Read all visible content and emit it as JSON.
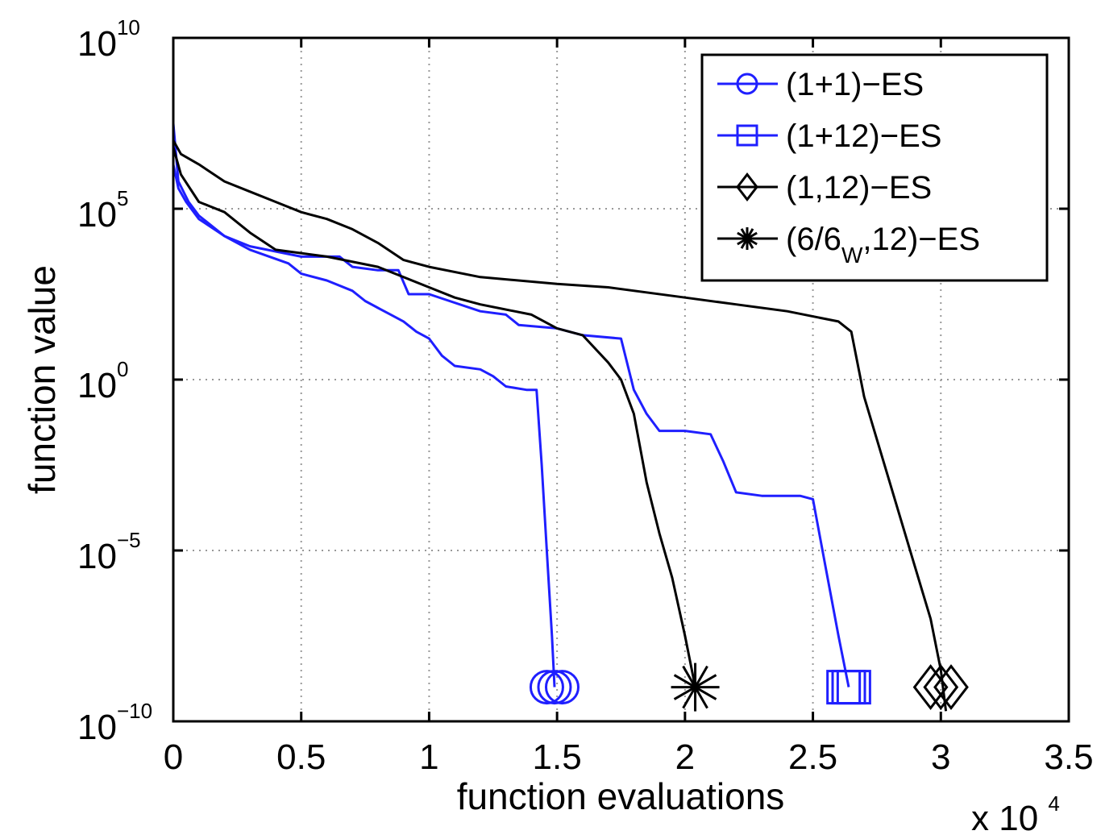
{
  "chart_data": {
    "type": "line",
    "xlabel": "function evaluations",
    "ylabel": "function value",
    "x_multiplier_label": {
      "base": "x 10",
      "exponent": "4"
    },
    "x_scale": 10000,
    "xlim": [
      0,
      3.5
    ],
    "ylim_log10": [
      -10,
      10
    ],
    "yscale": "log",
    "grid": true,
    "legend_position": "top-right",
    "x_ticks": [
      {
        "value": 0,
        "label": "0"
      },
      {
        "value": 0.5,
        "label": "0.5"
      },
      {
        "value": 1,
        "label": "1"
      },
      {
        "value": 1.5,
        "label": "1.5"
      },
      {
        "value": 2,
        "label": "2"
      },
      {
        "value": 2.5,
        "label": "2.5"
      },
      {
        "value": 3,
        "label": "3"
      },
      {
        "value": 3.5,
        "label": "3.5"
      }
    ],
    "y_ticks": [
      {
        "log10": 10,
        "base": "10",
        "exponent": "10"
      },
      {
        "log10": 5,
        "base": "10",
        "exponent": "5"
      },
      {
        "log10": 0,
        "base": "10",
        "exponent": "0"
      },
      {
        "log10": -5,
        "base": "10",
        "exponent": "−5"
      },
      {
        "log10": -10,
        "base": "10",
        "exponent": "−10"
      }
    ],
    "series": [
      {
        "name": "(1+1)−ES",
        "color": "#1f1fff",
        "marker": "circle",
        "points_x_x1e4_log10y": [
          [
            0,
            7.5
          ],
          [
            0.02,
            5.8
          ],
          [
            0.06,
            5.2
          ],
          [
            0.1,
            4.8
          ],
          [
            0.2,
            4.2
          ],
          [
            0.3,
            3.8
          ],
          [
            0.45,
            3.4
          ],
          [
            0.5,
            3.1
          ],
          [
            0.6,
            2.9
          ],
          [
            0.7,
            2.6
          ],
          [
            0.75,
            2.3
          ],
          [
            0.8,
            2.1
          ],
          [
            0.85,
            1.9
          ],
          [
            0.9,
            1.7
          ],
          [
            0.95,
            1.4
          ],
          [
            1.0,
            1.2
          ],
          [
            1.05,
            0.7
          ],
          [
            1.1,
            0.4
          ],
          [
            1.2,
            0.3
          ],
          [
            1.25,
            0.1
          ],
          [
            1.3,
            -0.2
          ],
          [
            1.38,
            -0.3
          ],
          [
            1.42,
            -0.3
          ],
          [
            1.44,
            -2.5
          ],
          [
            1.46,
            -5.0
          ],
          [
            1.48,
            -7.5
          ],
          [
            1.49,
            -9.0
          ]
        ],
        "end_markers_x": [
          1.46,
          1.49,
          1.52
        ],
        "end_markers_log10y": -9.0
      },
      {
        "name": "(1+12)−ES",
        "color": "#1f1fff",
        "marker": "square",
        "points_x_x1e4_log10y": [
          [
            0,
            6.3
          ],
          [
            0.02,
            5.6
          ],
          [
            0.05,
            5.2
          ],
          [
            0.1,
            4.7
          ],
          [
            0.2,
            4.2
          ],
          [
            0.3,
            3.9
          ],
          [
            0.5,
            3.6
          ],
          [
            0.65,
            3.6
          ],
          [
            0.7,
            3.3
          ],
          [
            0.8,
            3.2
          ],
          [
            0.88,
            3.2
          ],
          [
            0.92,
            2.5
          ],
          [
            1.0,
            2.5
          ],
          [
            1.2,
            2.0
          ],
          [
            1.3,
            1.9
          ],
          [
            1.35,
            1.6
          ],
          [
            1.5,
            1.5
          ],
          [
            1.6,
            1.3
          ],
          [
            1.75,
            1.2
          ],
          [
            1.8,
            -0.3
          ],
          [
            1.85,
            -1.0
          ],
          [
            1.9,
            -1.5
          ],
          [
            2.0,
            -1.5
          ],
          [
            2.1,
            -1.6
          ],
          [
            2.15,
            -2.4
          ],
          [
            2.2,
            -3.3
          ],
          [
            2.3,
            -3.4
          ],
          [
            2.45,
            -3.4
          ],
          [
            2.5,
            -3.5
          ],
          [
            2.55,
            -5.5
          ],
          [
            2.6,
            -7.5
          ],
          [
            2.64,
            -9.0
          ]
        ],
        "end_markers_x": [
          2.62,
          2.64,
          2.66
        ],
        "end_markers_log10y": -9.0
      },
      {
        "name": "(1,12)−ES",
        "color": "#000000",
        "marker": "diamond",
        "points_x_x1e4_log10y": [
          [
            0,
            7.0
          ],
          [
            0.03,
            6.6
          ],
          [
            0.1,
            6.3
          ],
          [
            0.2,
            5.8
          ],
          [
            0.3,
            5.5
          ],
          [
            0.4,
            5.2
          ],
          [
            0.5,
            4.9
          ],
          [
            0.6,
            4.7
          ],
          [
            0.7,
            4.4
          ],
          [
            0.8,
            4.0
          ],
          [
            0.9,
            3.5
          ],
          [
            1.0,
            3.3
          ],
          [
            1.2,
            3.0
          ],
          [
            1.5,
            2.8
          ],
          [
            1.7,
            2.7
          ],
          [
            2.0,
            2.4
          ],
          [
            2.2,
            2.2
          ],
          [
            2.4,
            2.0
          ],
          [
            2.6,
            1.7
          ],
          [
            2.65,
            1.4
          ],
          [
            2.7,
            -0.5
          ],
          [
            2.8,
            -3.0
          ],
          [
            2.9,
            -5.5
          ],
          [
            2.96,
            -7.0
          ],
          [
            3.0,
            -8.5
          ],
          [
            3.02,
            -9.7
          ]
        ],
        "end_markers_x": [
          2.96,
          3.0,
          3.04
        ],
        "end_markers_log10y": -9.0
      },
      {
        "name": "(6/6W,12)−ES",
        "name_parts": {
          "pre": "(6/6",
          "sub": "W",
          "post": ",12)−ES"
        },
        "color": "#000000",
        "marker": "asterisk",
        "points_x_x1e4_log10y": [
          [
            0,
            6.8
          ],
          [
            0.03,
            6.0
          ],
          [
            0.1,
            5.2
          ],
          [
            0.2,
            4.9
          ],
          [
            0.3,
            4.3
          ],
          [
            0.4,
            3.8
          ],
          [
            0.5,
            3.7
          ],
          [
            0.6,
            3.6
          ],
          [
            0.8,
            3.3
          ],
          [
            1.0,
            2.7
          ],
          [
            1.1,
            2.4
          ],
          [
            1.2,
            2.2
          ],
          [
            1.4,
            1.9
          ],
          [
            1.5,
            1.5
          ],
          [
            1.6,
            1.3
          ],
          [
            1.7,
            0.5
          ],
          [
            1.75,
            0.0
          ],
          [
            1.8,
            -1.0
          ],
          [
            1.85,
            -3.0
          ],
          [
            1.9,
            -4.5
          ],
          [
            1.95,
            -5.8
          ],
          [
            2.0,
            -7.5
          ],
          [
            2.04,
            -9.0
          ]
        ],
        "end_markers_x": [
          2.04
        ],
        "end_markers_log10y": -9.0
      }
    ]
  }
}
